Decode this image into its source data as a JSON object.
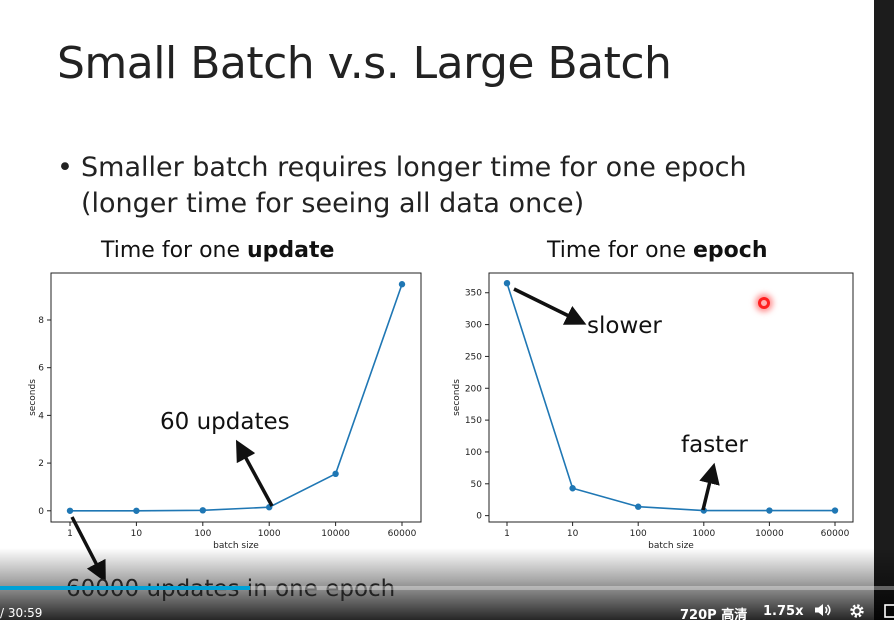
{
  "slide": {
    "title": "Small Batch v.s. Large Batch",
    "bullet_line1": "Smaller batch requires longer time for one epoch",
    "bullet_line2": "(longer time for seeing all data once)",
    "left_heading_prefix": "Time for one ",
    "left_heading_bold": "update",
    "right_heading_prefix": "Time for one ",
    "right_heading_bold": "epoch",
    "annotation_updates": "60 updates",
    "annotation_slower": "slower",
    "annotation_faster": "faster",
    "annotation_bottom": "60000 updates in one epoch"
  },
  "player": {
    "time": "/ 30:59",
    "quality": "720P 高清",
    "speed": "1.75x",
    "progress": 0.28,
    "colors": {
      "progress": "#00a1d6"
    }
  },
  "chart_data": [
    {
      "type": "line",
      "title": "Time for one update",
      "xlabel": "batch size",
      "ylabel": "seconds",
      "categories": [
        "1",
        "10",
        "100",
        "1000",
        "10000",
        "60000"
      ],
      "values": [
        0.0,
        0.0,
        0.02,
        0.15,
        1.55,
        9.5
      ],
      "yticks": [
        0,
        2,
        4,
        6,
        8
      ],
      "ylim": [
        -0.47,
        9.97
      ],
      "color": "#1f77b4"
    },
    {
      "type": "line",
      "title": "Time for one epoch",
      "xlabel": "batch size",
      "ylabel": "seconds",
      "categories": [
        "1",
        "10",
        "100",
        "1000",
        "10000",
        "60000"
      ],
      "values": [
        365,
        43,
        14,
        8,
        8,
        8
      ],
      "yticks": [
        0,
        50,
        100,
        150,
        200,
        250,
        300,
        350
      ],
      "ylim": [
        -10,
        381
      ],
      "color": "#1f77b4"
    }
  ]
}
